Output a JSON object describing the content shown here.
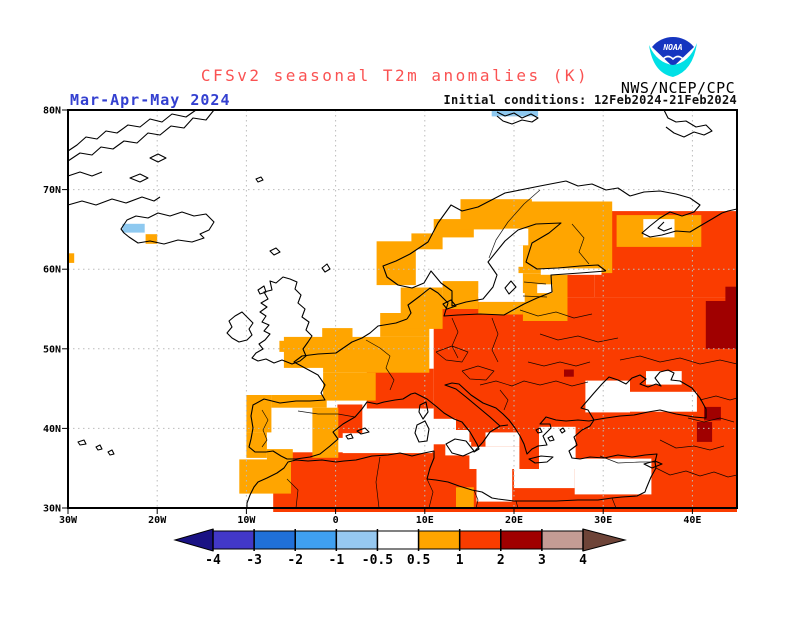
{
  "header": {
    "title": "CFSv2 seasonal T2m anomalies (K)",
    "season_label": "Mar-Apr-May 2024",
    "init_label": "Initial conditions: 12Feb2024-21Feb2024",
    "agency": "NWS/NCEP/CPC",
    "logo_text": "NOAA"
  },
  "palette": {
    "title_red": "#FA5252",
    "season_blue": "#3440D0",
    "init_black": "#101010",
    "grid_gray": "#BCBCBC",
    "frame_black": "#000000",
    "logo_blue": "#1535C0",
    "logo_cyan": "#00E0E6"
  },
  "chart_data": {
    "type": "heatmap",
    "title": "CFSv2 seasonal T2m anomalies (K)",
    "variable": "2-meter temperature seasonal anomaly over Europe",
    "units": "K",
    "season": "Mar-Apr-May 2024",
    "initial_conditions": "12Feb2024-21Feb2024",
    "projection": "lat-lon",
    "lon_range": [
      -30,
      45
    ],
    "lat_range": [
      30,
      80
    ],
    "grid": "dotted 10-degree graticule",
    "x_ticks": [
      {
        "label": "30W",
        "lon": -30
      },
      {
        "label": "20W",
        "lon": -20
      },
      {
        "label": "10W",
        "lon": -10
      },
      {
        "label": "0",
        "lon": 0
      },
      {
        "label": "10E",
        "lon": 10
      },
      {
        "label": "20E",
        "lon": 20
      },
      {
        "label": "30E",
        "lon": 30
      },
      {
        "label": "40E",
        "lon": 40
      }
    ],
    "y_ticks": [
      {
        "label": "80N",
        "lat": 80
      },
      {
        "label": "70N",
        "lat": 70
      },
      {
        "label": "60N",
        "lat": 60
      },
      {
        "label": "50N",
        "lat": 50
      },
      {
        "label": "40N",
        "lat": 40
      },
      {
        "label": "30N",
        "lat": 30
      }
    ],
    "colorbar": {
      "ticks": [
        "-4",
        "-3",
        "-2",
        "-1",
        "-0.5",
        "0.5",
        "1",
        "2",
        "3",
        "4"
      ],
      "segment_colors": [
        "#4238C8",
        "#2070D8",
        "#3FA0F0",
        "#96C8F0",
        "#FFFFFF",
        "#FFA500",
        "#FA3C00",
        "#A00000",
        "#C49C94"
      ],
      "left_arrow_color": "#1A1284",
      "right_arrow_color": "#6E4438"
    },
    "class_colors": {
      "b": "#8EC9F0",
      "w": "#FFFFFF",
      "o": "#FFA500",
      "r": "#FA3C00",
      "d": "#A00000"
    },
    "value_classes": {
      "b": "-1 to -0.5 K",
      "w": "-0.5 to 0.5 K or sea mask",
      "o": "0.5 to 1 K",
      "r": "1 to 2 K",
      "d": "2 to 3 K"
    },
    "cells": [
      [
        "r",
        11,
        36.2,
        45,
        56.5
      ],
      [
        "r",
        29,
        56.5,
        45,
        67.3
      ],
      [
        "r",
        26,
        56.5,
        29,
        61
      ],
      [
        "r",
        -7,
        29.5,
        45,
        37
      ],
      [
        "r",
        3.5,
        42.5,
        11,
        47.5
      ],
      [
        "r",
        0.2,
        38.8,
        3,
        43
      ],
      [
        "o",
        -5.8,
        47,
        10.5,
        51.5
      ],
      [
        "o",
        -5,
        43.5,
        4.5,
        47
      ],
      [
        "o",
        -1.5,
        49.8,
        1.9,
        52.6
      ],
      [
        "o",
        -6.3,
        49.6,
        -4.2,
        51
      ],
      [
        "o",
        5,
        51.5,
        10.5,
        54.5
      ],
      [
        "o",
        7.3,
        52.5,
        12,
        57.7
      ],
      [
        "o",
        12,
        55,
        16,
        58.5
      ],
      [
        "o",
        16,
        54.3,
        21,
        55.9
      ],
      [
        "o",
        4.6,
        58,
        9,
        63.5
      ],
      [
        "o",
        8.5,
        62.5,
        12,
        64.5
      ],
      [
        "o",
        11,
        64,
        15.5,
        66.3
      ],
      [
        "o",
        14,
        65,
        22,
        68.8
      ],
      [
        "o",
        20.5,
        59.5,
        31,
        68.5
      ],
      [
        "o",
        21,
        53.5,
        26,
        59.5
      ],
      [
        "o",
        31.5,
        62.8,
        41,
        66.8
      ],
      [
        "o",
        -10,
        39.5,
        -7.2,
        44.2
      ],
      [
        "o",
        -7.2,
        42.6,
        -1,
        44.2
      ],
      [
        "o",
        -10,
        36.3,
        -7.7,
        39.5
      ],
      [
        "o",
        -7.7,
        35.8,
        -4.8,
        37.4
      ],
      [
        "o",
        -2.6,
        36.3,
        0.3,
        42.6
      ],
      [
        "o",
        -10.8,
        31.8,
        -5,
        36.1
      ],
      [
        "o",
        13.5,
        30,
        15.5,
        32.6
      ],
      [
        "o",
        -21.3,
        63.2,
        -20,
        64.4
      ],
      [
        "o",
        -30,
        60.8,
        -29.3,
        62
      ],
      [
        "b",
        -23.9,
        64.6,
        -21.4,
        65.7
      ],
      [
        "b",
        17.5,
        79.2,
        22.7,
        80
      ],
      [
        "w",
        -6.8,
        44.2,
        -1.4,
        47.6
      ],
      [
        "w",
        34.5,
        64,
        38,
        66.3
      ],
      [
        "w",
        0.8,
        36.9,
        10.8,
        39.4
      ],
      [
        "w",
        3,
        39.4,
        7.8,
        42.4
      ],
      [
        "w",
        10.8,
        38,
        13.5,
        41.2
      ],
      [
        "w",
        13.5,
        37.8,
        15,
        39.8
      ],
      [
        "w",
        12.3,
        36.6,
        15.2,
        38.3
      ],
      [
        "w",
        15,
        34.9,
        20.6,
        37.7
      ],
      [
        "w",
        16.8,
        37.7,
        20.6,
        39.5
      ],
      [
        "w",
        15.8,
        30.8,
        19.8,
        34.9
      ],
      [
        "w",
        20,
        32.5,
        26.8,
        34.9
      ],
      [
        "w",
        26.8,
        31.7,
        35.4,
        36.2
      ],
      [
        "w",
        22.8,
        34.9,
        26.9,
        40.2
      ],
      [
        "w",
        28,
        42,
        33,
        46
      ],
      [
        "w",
        33,
        42.1,
        40.5,
        44.6
      ],
      [
        "w",
        34.8,
        45.5,
        38.8,
        47.2
      ],
      [
        "w",
        16,
        55.9,
        21.2,
        57
      ],
      [
        "w",
        17.2,
        56.8,
        20.8,
        59.2
      ],
      [
        "w",
        22.6,
        57,
        24.3,
        58.1
      ],
      [
        "w",
        18,
        60.3,
        21,
        63
      ],
      [
        "w",
        18.8,
        63,
        21.6,
        65.1
      ],
      [
        "w",
        23,
        59.3,
        29.8,
        60.1
      ],
      [
        "d",
        41.5,
        50,
        45,
        56
      ],
      [
        "d",
        43.7,
        56,
        45,
        57.8
      ],
      [
        "d",
        41.3,
        41,
        43.2,
        42.7
      ],
      [
        "d",
        40.5,
        38.3,
        42.2,
        40.8
      ],
      [
        "d",
        25.6,
        46.5,
        26.7,
        47.4
      ]
    ]
  }
}
